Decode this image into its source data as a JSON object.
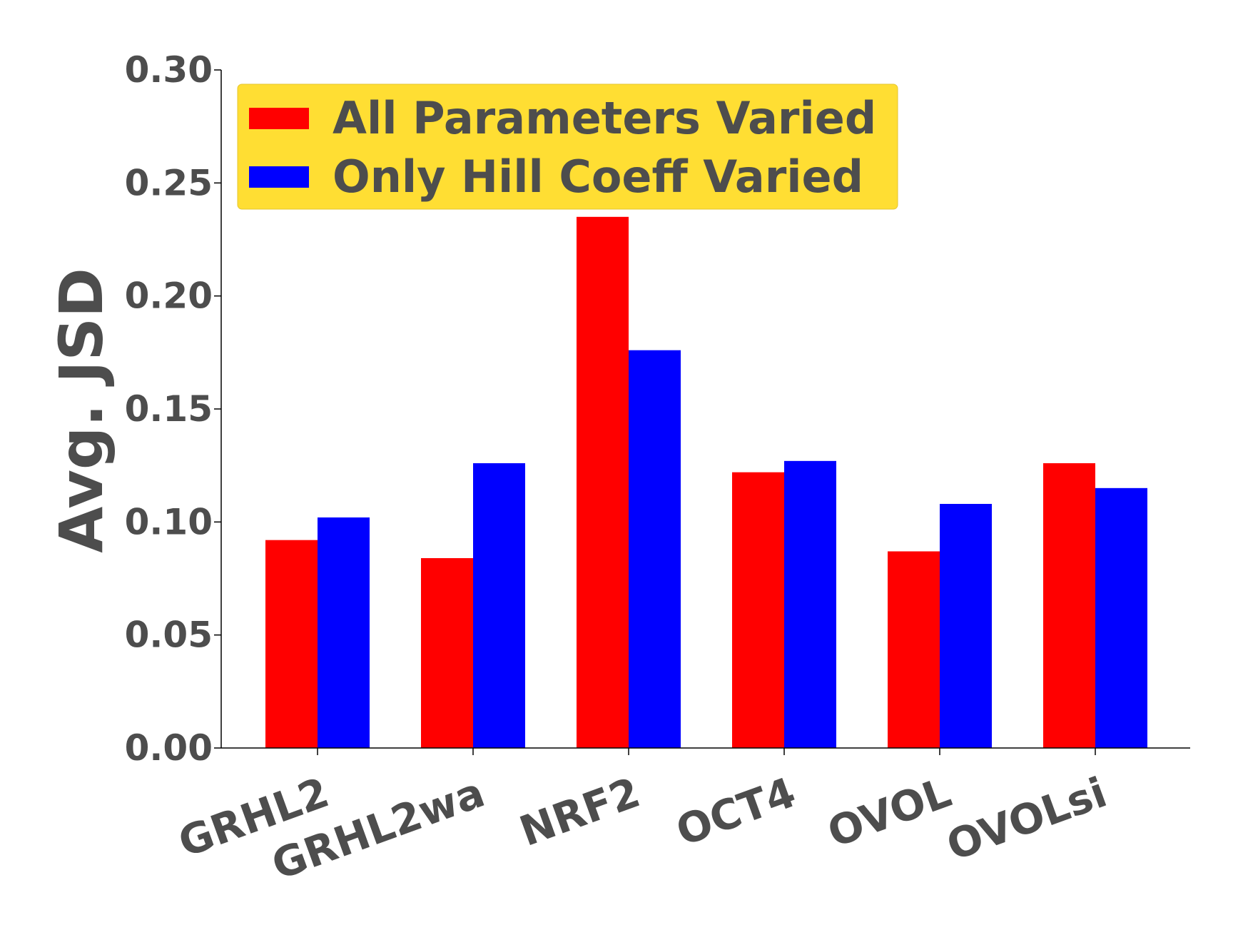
{
  "chart_data": {
    "type": "bar",
    "title": "",
    "xlabel": "",
    "ylabel": "Avg. JSD",
    "ylim": [
      0,
      0.3
    ],
    "yticks": [
      "0.00",
      "0.05",
      "0.10",
      "0.15",
      "0.20",
      "0.25",
      "0.30"
    ],
    "categories": [
      "GRHL2",
      "GRHL2wa",
      "NRF2",
      "OCT4",
      "OVOL",
      "OVOLsi"
    ],
    "series": [
      {
        "name": "All Parameters Varied",
        "color": "#ff0000",
        "values": [
          0.092,
          0.084,
          0.235,
          0.122,
          0.087,
          0.126
        ]
      },
      {
        "name": "Only Hill Coeff Varied",
        "color": "#0000ff",
        "values": [
          0.102,
          0.126,
          0.176,
          0.127,
          0.108,
          0.115
        ]
      }
    ],
    "grid": false,
    "legend": {
      "placement": "top-left",
      "background": "#ffde33"
    },
    "text_color": "#4d4d4d"
  }
}
